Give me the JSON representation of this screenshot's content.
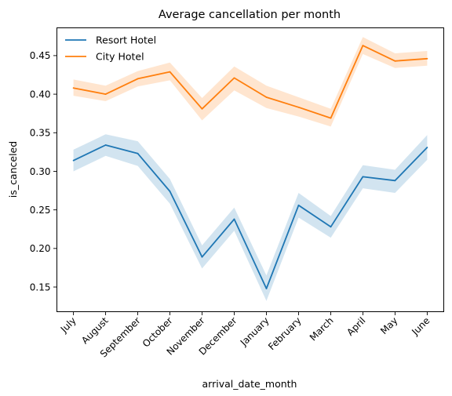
{
  "chart_data": {
    "type": "line",
    "title": "Average cancellation per month",
    "xlabel": "arrival_date_month",
    "ylabel": "is_canceled",
    "categories": [
      "July",
      "August",
      "September",
      "October",
      "November",
      "December",
      "January",
      "February",
      "March",
      "April",
      "May",
      "June"
    ],
    "ylim": [
      0.118,
      0.486
    ],
    "yticks": [
      "0.15",
      "0.20",
      "0.25",
      "0.30",
      "0.35",
      "0.40",
      "0.45"
    ],
    "grid": false,
    "legend_position": "top-left",
    "series": [
      {
        "name": "Resort Hotel",
        "color": "#1f77b4",
        "values": [
          0.314,
          0.334,
          0.323,
          0.274,
          0.189,
          0.238,
          0.148,
          0.256,
          0.228,
          0.293,
          0.288,
          0.331
        ],
        "ci_lower": [
          0.3,
          0.32,
          0.307,
          0.258,
          0.174,
          0.223,
          0.132,
          0.24,
          0.214,
          0.278,
          0.272,
          0.315
        ],
        "ci_upper": [
          0.328,
          0.348,
          0.339,
          0.29,
          0.204,
          0.253,
          0.165,
          0.272,
          0.242,
          0.308,
          0.302,
          0.347
        ]
      },
      {
        "name": "City Hotel",
        "color": "#ff7f0e",
        "values": [
          0.408,
          0.4,
          0.42,
          0.429,
          0.381,
          0.421,
          0.396,
          0.383,
          0.369,
          0.463,
          0.443,
          0.446
        ],
        "ci_lower": [
          0.398,
          0.391,
          0.41,
          0.418,
          0.366,
          0.405,
          0.382,
          0.371,
          0.358,
          0.452,
          0.434,
          0.437
        ],
        "ci_upper": [
          0.419,
          0.411,
          0.43,
          0.441,
          0.395,
          0.436,
          0.411,
          0.396,
          0.381,
          0.474,
          0.453,
          0.456
        ]
      }
    ]
  }
}
